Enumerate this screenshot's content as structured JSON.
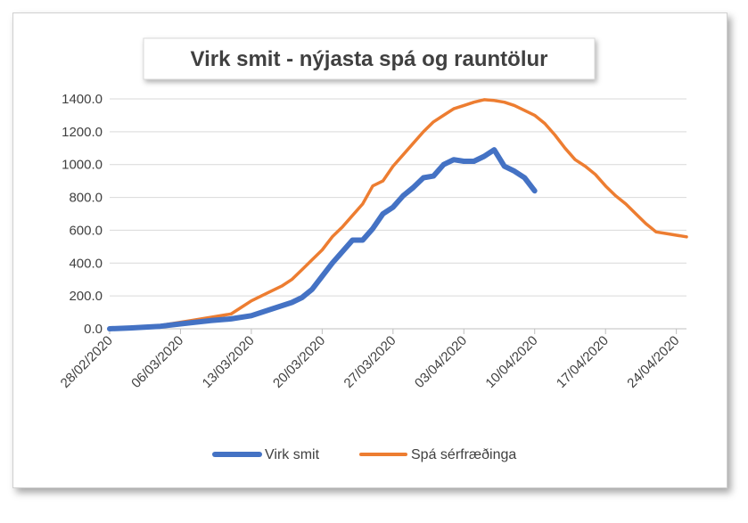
{
  "chart_data": {
    "type": "line",
    "title": "Virk smit - nýjasta spá og rauntölur",
    "xlabel": "",
    "ylabel": "",
    "ylim": [
      0,
      1400
    ],
    "y_ticks": [
      "0.0",
      "200.0",
      "400.0",
      "600.0",
      "800.0",
      "1000.0",
      "1200.0",
      "1400.0"
    ],
    "x_ticks": [
      "28/02/2020",
      "06/03/2020",
      "13/03/2020",
      "20/03/2020",
      "27/03/2020",
      "03/04/2020",
      "10/04/2020",
      "17/04/2020",
      "24/04/2020"
    ],
    "grid": true,
    "legend_position": "bottom",
    "series": [
      {
        "name": "Virk smit",
        "color": "#4472C4",
        "x": [
          0,
          2,
          5,
          7,
          10,
          12,
          14,
          16,
          18,
          19,
          20,
          21,
          22,
          23,
          24,
          25,
          26,
          27,
          28,
          29,
          30,
          31,
          32,
          33,
          34,
          35,
          36,
          37,
          38,
          39,
          40,
          41,
          42
        ],
        "y": [
          0,
          5,
          15,
          30,
          50,
          60,
          80,
          120,
          160,
          190,
          240,
          320,
          400,
          470,
          540,
          540,
          610,
          700,
          740,
          810,
          860,
          920,
          930,
          1000,
          1030,
          1020,
          1020,
          1050,
          1090,
          990,
          960,
          920,
          840
        ]
      },
      {
        "name": "Spá sérfræðinga",
        "color": "#ED7D31",
        "x": [
          0,
          2,
          3,
          4,
          6,
          8,
          10,
          12,
          13,
          14,
          15,
          16,
          17,
          18,
          19,
          20,
          21,
          22,
          23,
          24,
          25,
          26,
          27,
          28,
          29,
          30,
          31,
          32,
          33,
          34,
          35,
          36,
          37,
          38,
          39,
          40,
          41,
          42,
          43,
          44,
          45,
          46,
          47,
          48,
          49,
          50,
          51,
          52,
          53,
          54,
          55,
          56,
          57
        ],
        "y": [
          0,
          0,
          5,
          10,
          30,
          50,
          70,
          90,
          130,
          170,
          200,
          230,
          260,
          300,
          360,
          420,
          480,
          560,
          620,
          690,
          760,
          870,
          900,
          990,
          1060,
          1130,
          1200,
          1260,
          1300,
          1340,
          1360,
          1380,
          1395,
          1390,
          1380,
          1360,
          1330,
          1300,
          1250,
          1180,
          1100,
          1030,
          990,
          940,
          870,
          810,
          760,
          700,
          640,
          590,
          580,
          570,
          560
        ]
      }
    ]
  }
}
